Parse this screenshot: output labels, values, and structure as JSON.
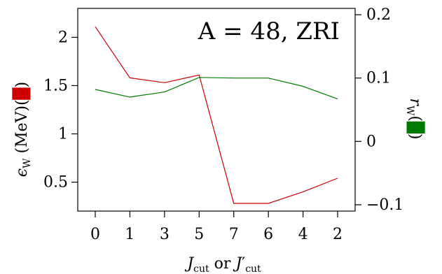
{
  "chart_data": {
    "type": "line",
    "annotation": "A = 48, ZRI",
    "xlabel": "J_cut or J′_cut",
    "ylabel_left": "ϵ_W (MeV)",
    "ylabel_right": "r_W",
    "categories": [
      "0",
      "1",
      "3",
      "5",
      "7",
      "6",
      "4",
      "2"
    ],
    "y_left_range": [
      0.2,
      2.3
    ],
    "y_left_ticks": [
      0.5,
      1,
      1.5,
      2
    ],
    "y_left_tick_labels": [
      "0.5",
      "1",
      "1.5",
      "2"
    ],
    "y_right_range": [
      -0.11,
      0.21
    ],
    "y_right_ticks": [
      -0.1,
      0,
      0.1,
      0.2
    ],
    "y_right_tick_labels": [
      "−0.1",
      "0",
      "0.1",
      "0.2"
    ],
    "series": [
      {
        "axis": "left",
        "color": "#cc0000",
        "values": [
          2.11,
          1.58,
          1.53,
          1.61,
          0.28,
          0.28,
          0.4,
          0.54
        ]
      },
      {
        "axis": "right",
        "color": "#007a00",
        "values": [
          0.082,
          0.07,
          0.078,
          0.101,
          0.1,
          0.1,
          0.087,
          0.067
        ]
      }
    ]
  }
}
